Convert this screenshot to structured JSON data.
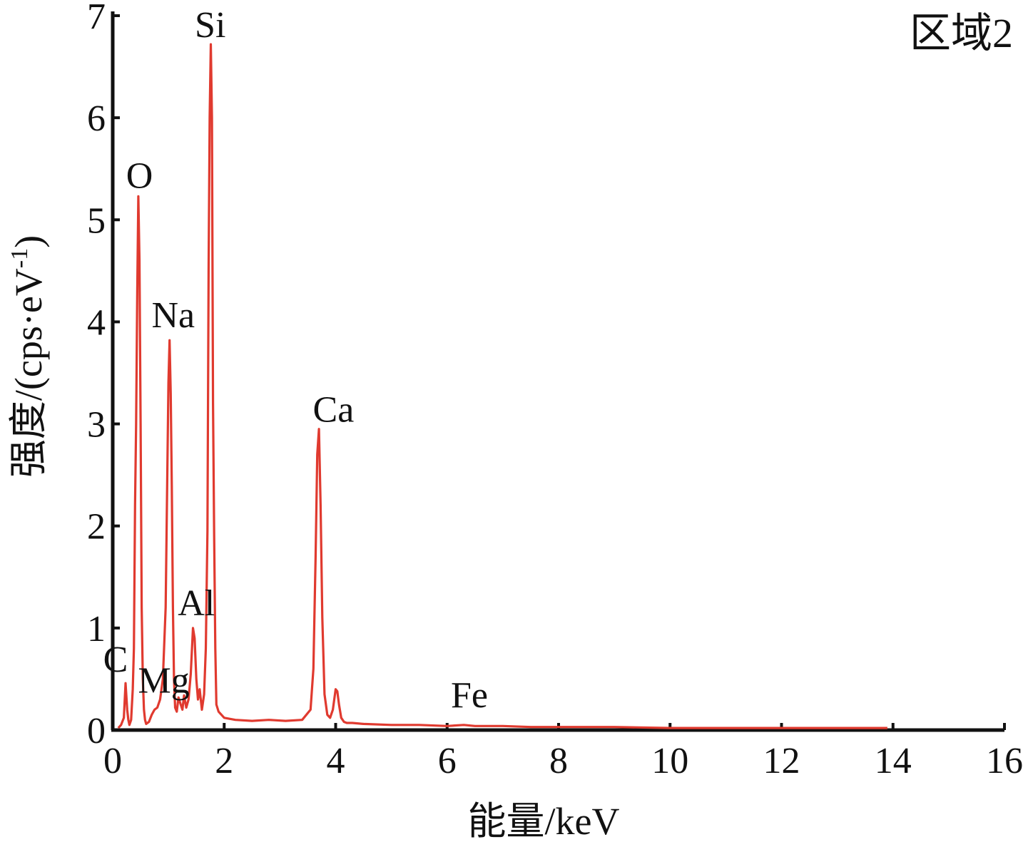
{
  "chart_data": {
    "type": "line",
    "region_label": "区域2",
    "xlabel": "能量/keV",
    "ylabel_main": "强度/(cps·eV",
    "ylabel_sup": "-1",
    "ylabel_close": ")",
    "xlim": [
      0,
      16
    ],
    "ylim": [
      0,
      7
    ],
    "x_ticks": [
      0,
      2,
      4,
      6,
      8,
      10,
      12,
      14,
      16
    ],
    "y_ticks": [
      0,
      1,
      2,
      3,
      4,
      5,
      6,
      7
    ],
    "colors": {
      "line": "#e03a2f",
      "axis": "#111111"
    },
    "series": [
      {
        "x": [
          0.1,
          0.15,
          0.2,
          0.23,
          0.26,
          0.28,
          0.3,
          0.33,
          0.36,
          0.38,
          0.4,
          0.42,
          0.44,
          0.46,
          0.48,
          0.5,
          0.52,
          0.54,
          0.56,
          0.58,
          0.6,
          0.65,
          0.7,
          0.75,
          0.8,
          0.85,
          0.9,
          0.95,
          1.0,
          1.02,
          1.04,
          1.06,
          1.08,
          1.1,
          1.12,
          1.15,
          1.18,
          1.22,
          1.25,
          1.28,
          1.32,
          1.36,
          1.4,
          1.44,
          1.47,
          1.5,
          1.53,
          1.56,
          1.6,
          1.64,
          1.67,
          1.7,
          1.72,
          1.74,
          1.76,
          1.78,
          1.8,
          1.82,
          1.84,
          1.86,
          1.9,
          2.0,
          2.2,
          2.5,
          2.8,
          3.1,
          3.4,
          3.55,
          3.6,
          3.64,
          3.67,
          3.7,
          3.73,
          3.76,
          3.8,
          3.85,
          3.9,
          3.95,
          4.0,
          4.03,
          4.06,
          4.1,
          4.15,
          4.2,
          4.3,
          4.5,
          5.0,
          5.5,
          6.0,
          6.3,
          6.5,
          7.0,
          7.5,
          8.0,
          9.0,
          10.0,
          11.0,
          12.0,
          13.0,
          13.9
        ],
        "y": [
          0.02,
          0.05,
          0.12,
          0.46,
          0.2,
          0.1,
          0.05,
          0.1,
          0.4,
          0.8,
          2.2,
          3.0,
          4.3,
          5.23,
          4.6,
          3.0,
          1.2,
          0.5,
          0.2,
          0.1,
          0.06,
          0.08,
          0.15,
          0.2,
          0.22,
          0.3,
          0.5,
          1.2,
          3.4,
          3.82,
          3.3,
          2.4,
          1.2,
          0.5,
          0.22,
          0.18,
          0.32,
          0.25,
          0.2,
          0.34,
          0.22,
          0.3,
          0.55,
          1.0,
          0.9,
          0.5,
          0.3,
          0.4,
          0.2,
          0.35,
          0.8,
          1.95,
          4.5,
          6.0,
          6.72,
          6.0,
          3.2,
          1.9,
          0.8,
          0.25,
          0.18,
          0.12,
          0.1,
          0.09,
          0.1,
          0.09,
          0.1,
          0.2,
          0.6,
          1.7,
          2.7,
          2.95,
          2.2,
          1.1,
          0.35,
          0.15,
          0.12,
          0.2,
          0.4,
          0.38,
          0.25,
          0.12,
          0.08,
          0.07,
          0.07,
          0.06,
          0.05,
          0.05,
          0.04,
          0.05,
          0.04,
          0.04,
          0.03,
          0.03,
          0.03,
          0.02,
          0.02,
          0.02,
          0.02,
          0.02
        ]
      }
    ],
    "peak_labels": [
      {
        "text": "Si",
        "x": 1.75,
        "y": 6.72
      },
      {
        "text": "O",
        "x": 0.48,
        "y": 5.23
      },
      {
        "text": "Na",
        "x": 1.06,
        "y": 3.82
      },
      {
        "text": "Ca",
        "x": 3.73,
        "y": 2.95
      },
      {
        "text": "Al",
        "x": 1.5,
        "y": 1.0
      },
      {
        "text": "C",
        "x": 0.23,
        "y": 0.46
      },
      {
        "text": "Mg",
        "x": 1.25,
        "y": 0.34
      },
      {
        "text": "Fe",
        "x": 6.4,
        "y": 0.05
      }
    ]
  }
}
